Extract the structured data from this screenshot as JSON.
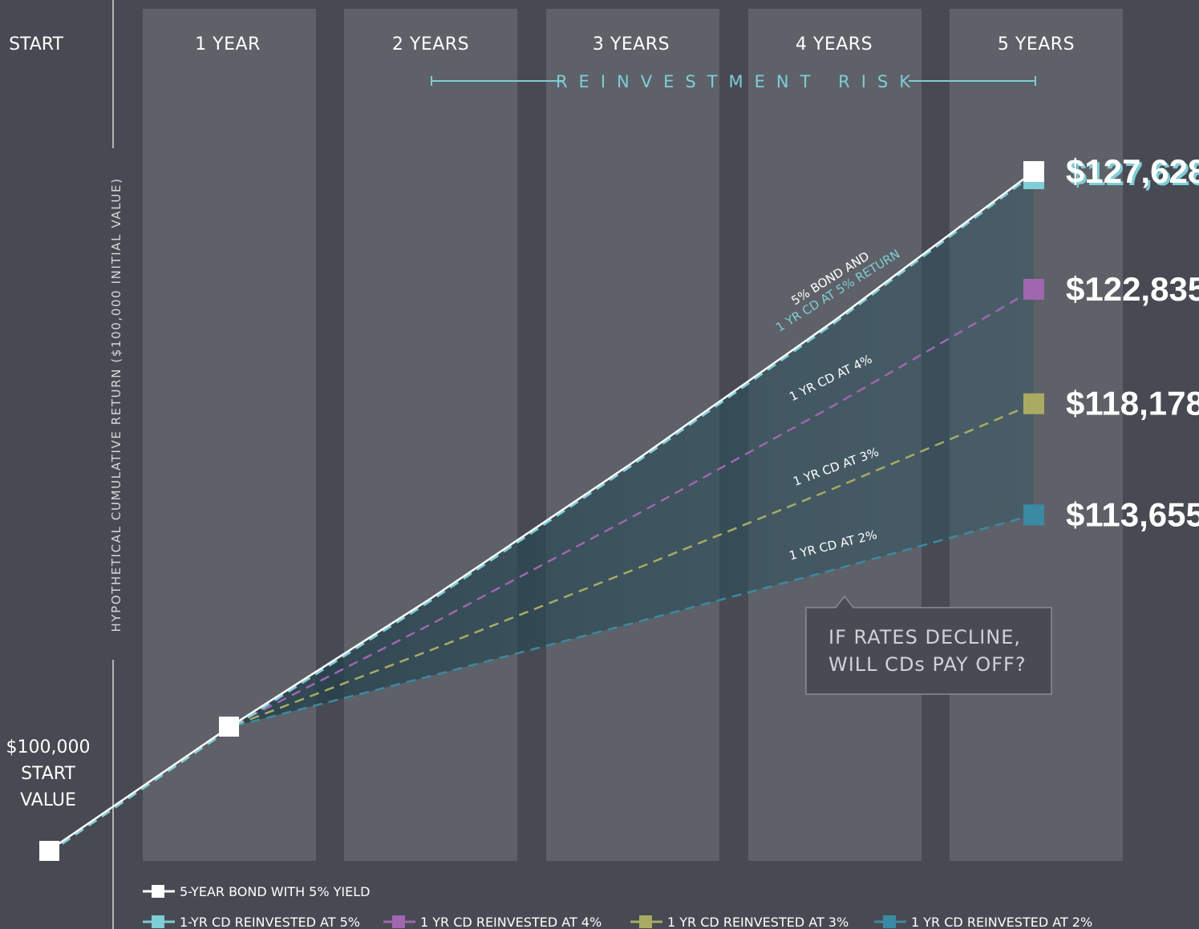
{
  "chart_data": {
    "type": "line",
    "title": "",
    "ylabel": "HYPOTHETICAL CUMULATIVE RETURN ($100,000 INITIAL VALUE)",
    "x": [
      0,
      1,
      2,
      3,
      4,
      5
    ],
    "x_labels": [
      "START",
      "1 YEAR",
      "2 YEARS",
      "3 YEARS",
      "4 YEARS",
      "5 YEARS"
    ],
    "start_value_lines": [
      "$100,000",
      "START",
      "VALUE"
    ],
    "risk_label": "REINVESTMENT RISK",
    "series": [
      {
        "name": "5-YEAR BOND WITH 5% YIELD",
        "color": "#ffffff",
        "dashed": false,
        "values": [
          100000,
          105000,
          110250,
          115763,
          121551,
          127628
        ]
      },
      {
        "name": "1-YR CD REINVESTED AT 5%",
        "color": "#7fcdd6",
        "dashed": true,
        "values": [
          100000,
          105000,
          110250,
          115763,
          121551,
          127628
        ]
      },
      {
        "name": "1 YR CD REINVESTED AT 4%",
        "color": "#a066b0",
        "dashed": true,
        "values": [
          100000,
          105000,
          109200,
          113568,
          118111,
          122835
        ]
      },
      {
        "name": "1 YR CD REINVESTED AT 3%",
        "color": "#a9ab62",
        "dashed": true,
        "values": [
          100000,
          105000,
          108150,
          111395,
          114736,
          118178
        ]
      },
      {
        "name": "1 YR CD REINVESTED AT 2%",
        "color": "#3b8aa3",
        "dashed": true,
        "values": [
          100000,
          105000,
          107100,
          109242,
          111427,
          113655
        ]
      }
    ],
    "end_values": [
      "$127,628",
      "$122,835",
      "$118,178",
      "$113,655"
    ],
    "line_labels": {
      "bond_top": "5% BOND AND",
      "bond_bottom": "1 YR CD AT 5% RETURN",
      "cd4": "1 YR CD AT  4%",
      "cd3": "1 YR CD AT  3%",
      "cd2": "1 YR CD AT  2%"
    },
    "callout": [
      "IF RATES DECLINE,",
      "WILL CDs PAY OFF?"
    ],
    "grid": false,
    "legend_position": "bottom"
  }
}
